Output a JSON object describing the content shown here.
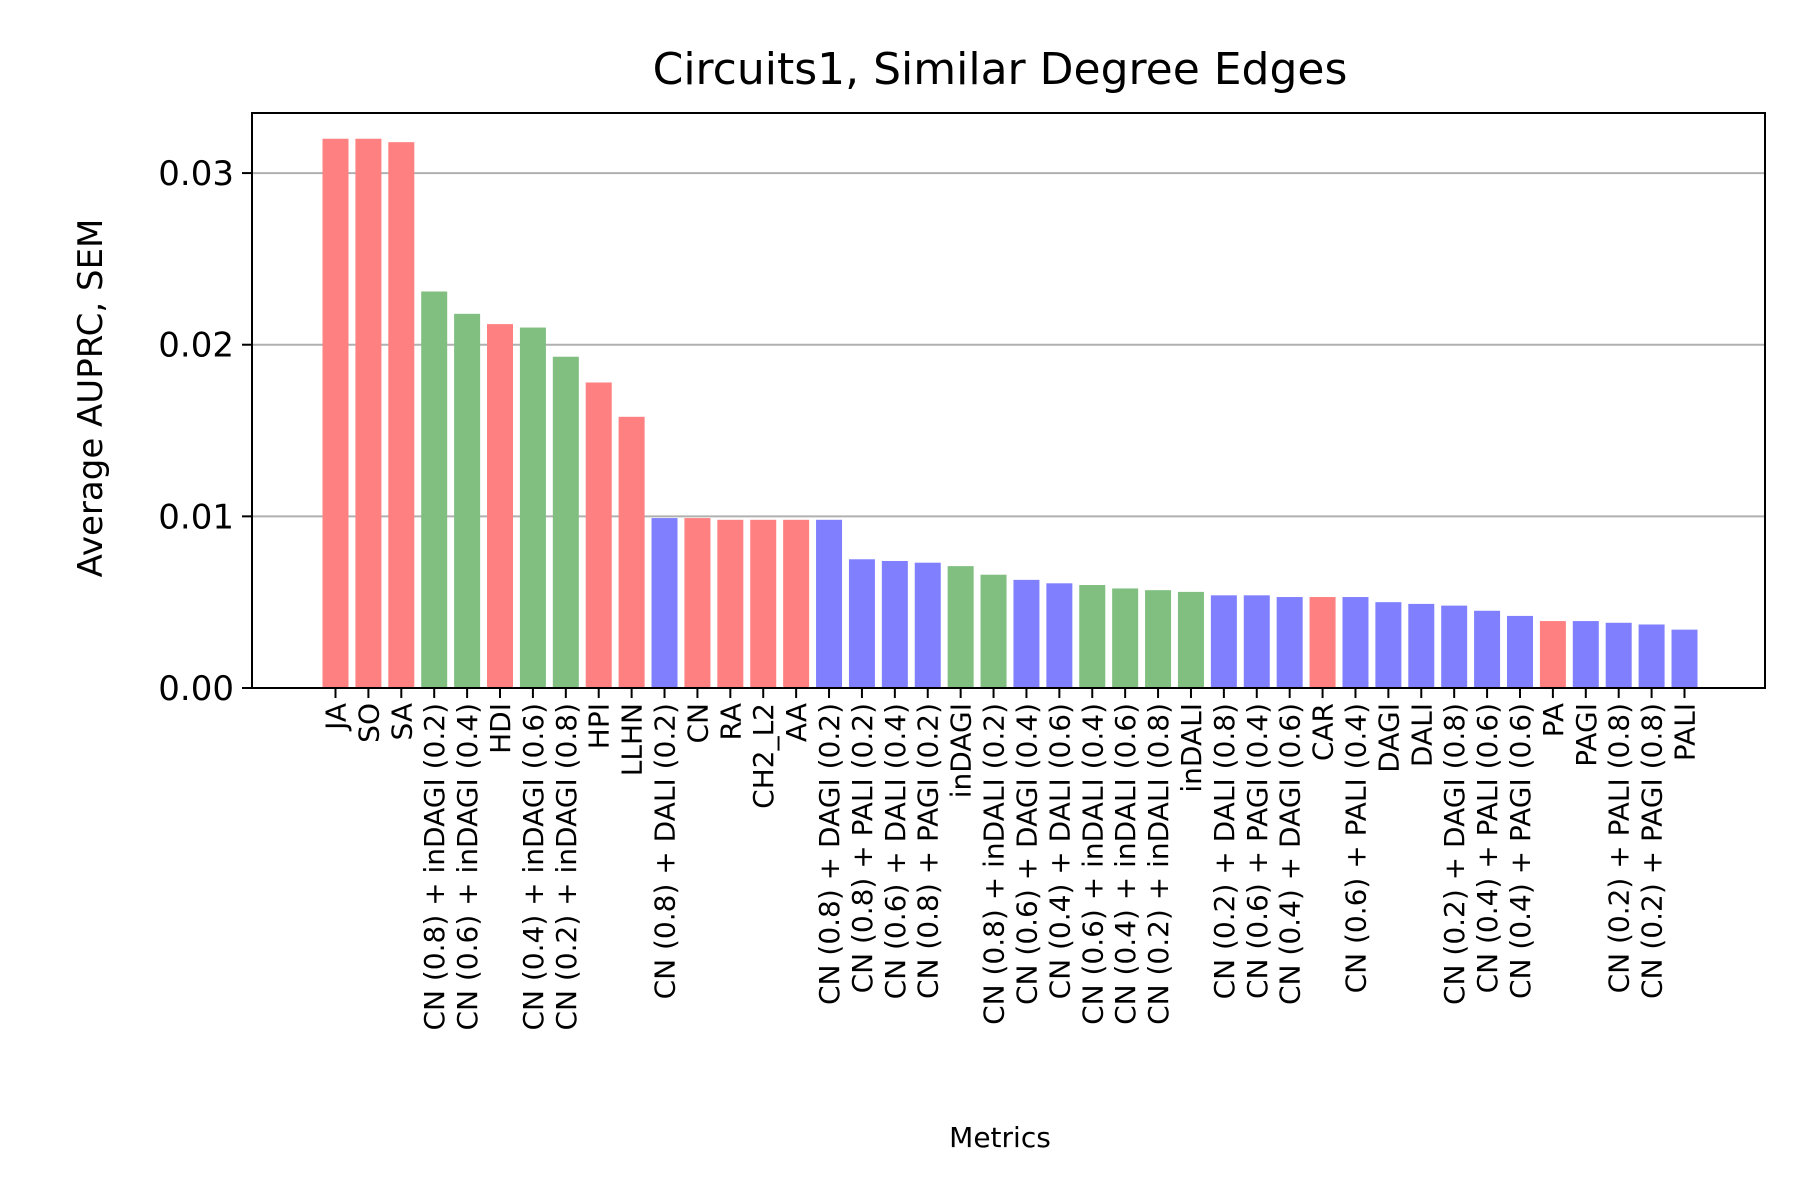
{
  "chart_data": {
    "type": "bar",
    "title": "Circuits1, Similar Degree Edges",
    "xlabel": "Metrics",
    "ylabel": "Average AUPRC, SEM",
    "ylim": [
      0,
      0.0335
    ],
    "yticks": [
      "0.00",
      "0.01",
      "0.02",
      "0.03"
    ],
    "ytick_values": [
      0,
      0.01,
      0.02,
      0.03
    ],
    "grid": "y",
    "legend": "none",
    "colors": {
      "red": "#ff8080",
      "green": "#80bf80",
      "blue": "#8080ff",
      "grid": "#b0b0b0"
    },
    "categories": [
      "JA",
      "SO",
      "SA",
      "CN (0.8) + inDAGI (0.2)",
      "CN (0.6) + inDAGI (0.4)",
      "HDI",
      "CN (0.4) + inDAGI (0.6)",
      "CN (0.2) + inDAGI (0.8)",
      "HPI",
      "LLHN",
      "CN (0.8) + DALI (0.2)",
      "CN",
      "RA",
      "CH2_L2",
      "AA",
      "CN (0.8) + DAGI (0.2)",
      "CN (0.8) + PALI (0.2)",
      "CN (0.6) + DALI (0.4)",
      "CN (0.8) + PAGI (0.2)",
      "inDAGI",
      "CN (0.8) + inDALI (0.2)",
      "CN (0.6) + DAGI (0.4)",
      "CN (0.4) + DALI (0.6)",
      "CN (0.6) + inDALI (0.4)",
      "CN (0.4) + inDALI (0.6)",
      "CN (0.2) + inDALI (0.8)",
      "inDALI",
      "CN (0.2) + DALI (0.8)",
      "CN (0.6) + PAGI (0.4)",
      "CN (0.4) + DAGI (0.6)",
      "CAR",
      "CN (0.6) + PALI (0.4)",
      "DAGI",
      "DALI",
      "CN (0.2) + DAGI (0.8)",
      "CN (0.4) + PALI (0.6)",
      "CN (0.4) + PAGI (0.6)",
      "PA",
      "PAGI",
      "CN (0.2) + PALI (0.8)",
      "CN (0.2) + PAGI (0.8)",
      "PALI"
    ],
    "values": [
      0.032,
      0.032,
      0.0318,
      0.0231,
      0.0218,
      0.0212,
      0.021,
      0.0193,
      0.0178,
      0.0158,
      0.0099,
      0.0099,
      0.0098,
      0.0098,
      0.0098,
      0.0098,
      0.0075,
      0.0074,
      0.0073,
      0.0071,
      0.0066,
      0.0063,
      0.0061,
      0.006,
      0.0058,
      0.0057,
      0.0056,
      0.0054,
      0.0054,
      0.0053,
      0.0053,
      0.0053,
      0.005,
      0.0049,
      0.0048,
      0.0045,
      0.0042,
      0.0039,
      0.0039,
      0.0038,
      0.0037,
      0.0034
    ],
    "bar_colors": [
      "red",
      "red",
      "red",
      "green",
      "green",
      "red",
      "green",
      "green",
      "red",
      "red",
      "blue",
      "red",
      "red",
      "red",
      "red",
      "blue",
      "blue",
      "blue",
      "blue",
      "green",
      "green",
      "blue",
      "blue",
      "green",
      "green",
      "green",
      "green",
      "blue",
      "blue",
      "blue",
      "red",
      "blue",
      "blue",
      "blue",
      "blue",
      "blue",
      "blue",
      "red",
      "blue",
      "blue",
      "blue",
      "blue"
    ]
  }
}
